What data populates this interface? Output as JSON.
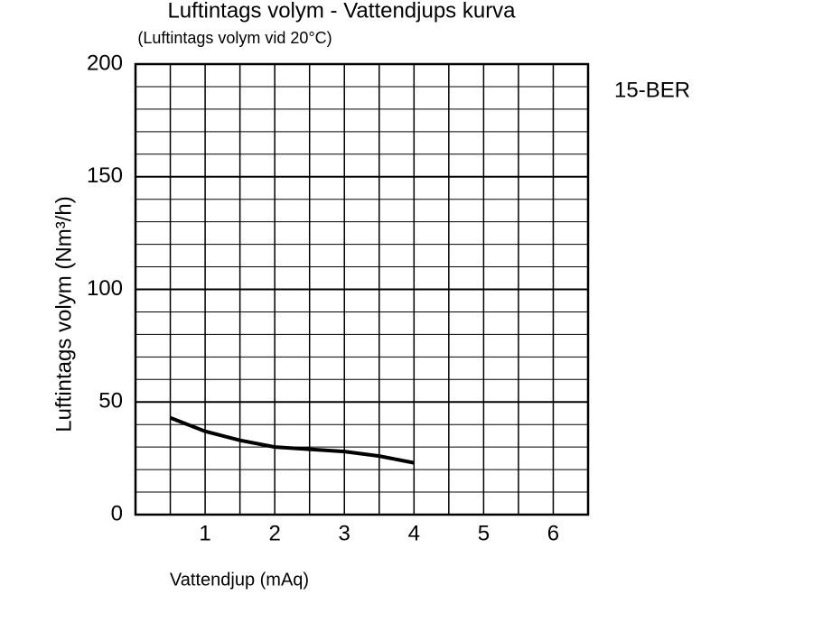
{
  "chart_data": {
    "type": "line",
    "title": "Luftintags volym - Vattendjups kurva",
    "subtitle": "(Luftintags volym vid 20°C)",
    "annotation": "15-BER",
    "x_label": "Vattendjup (mAq)",
    "y_label": "Luftintags volym (Nm³/h)",
    "x": [
      0.5,
      1,
      1.5,
      2,
      2.5,
      3,
      3.5,
      4
    ],
    "series": [
      {
        "name": "15-BER",
        "color": "#000000",
        "values": [
          43,
          37,
          33,
          30,
          29,
          28,
          26,
          23
        ]
      }
    ],
    "xlim": [
      0,
      6.5
    ],
    "xticks": [
      1,
      2,
      3,
      4,
      5,
      6
    ],
    "ylim": [
      0,
      200
    ],
    "yticks": [
      0,
      50,
      100,
      150,
      200
    ],
    "x_grid": [
      0,
      0.5,
      1,
      1.5,
      2,
      2.5,
      3,
      3.5,
      4,
      4.5,
      5,
      5.5,
      6,
      6.5
    ],
    "y_grid": [
      0,
      10,
      20,
      30,
      40,
      50,
      60,
      70,
      80,
      90,
      100,
      110,
      120,
      130,
      140,
      150,
      160,
      170,
      180,
      190,
      200
    ],
    "grid": true
  }
}
